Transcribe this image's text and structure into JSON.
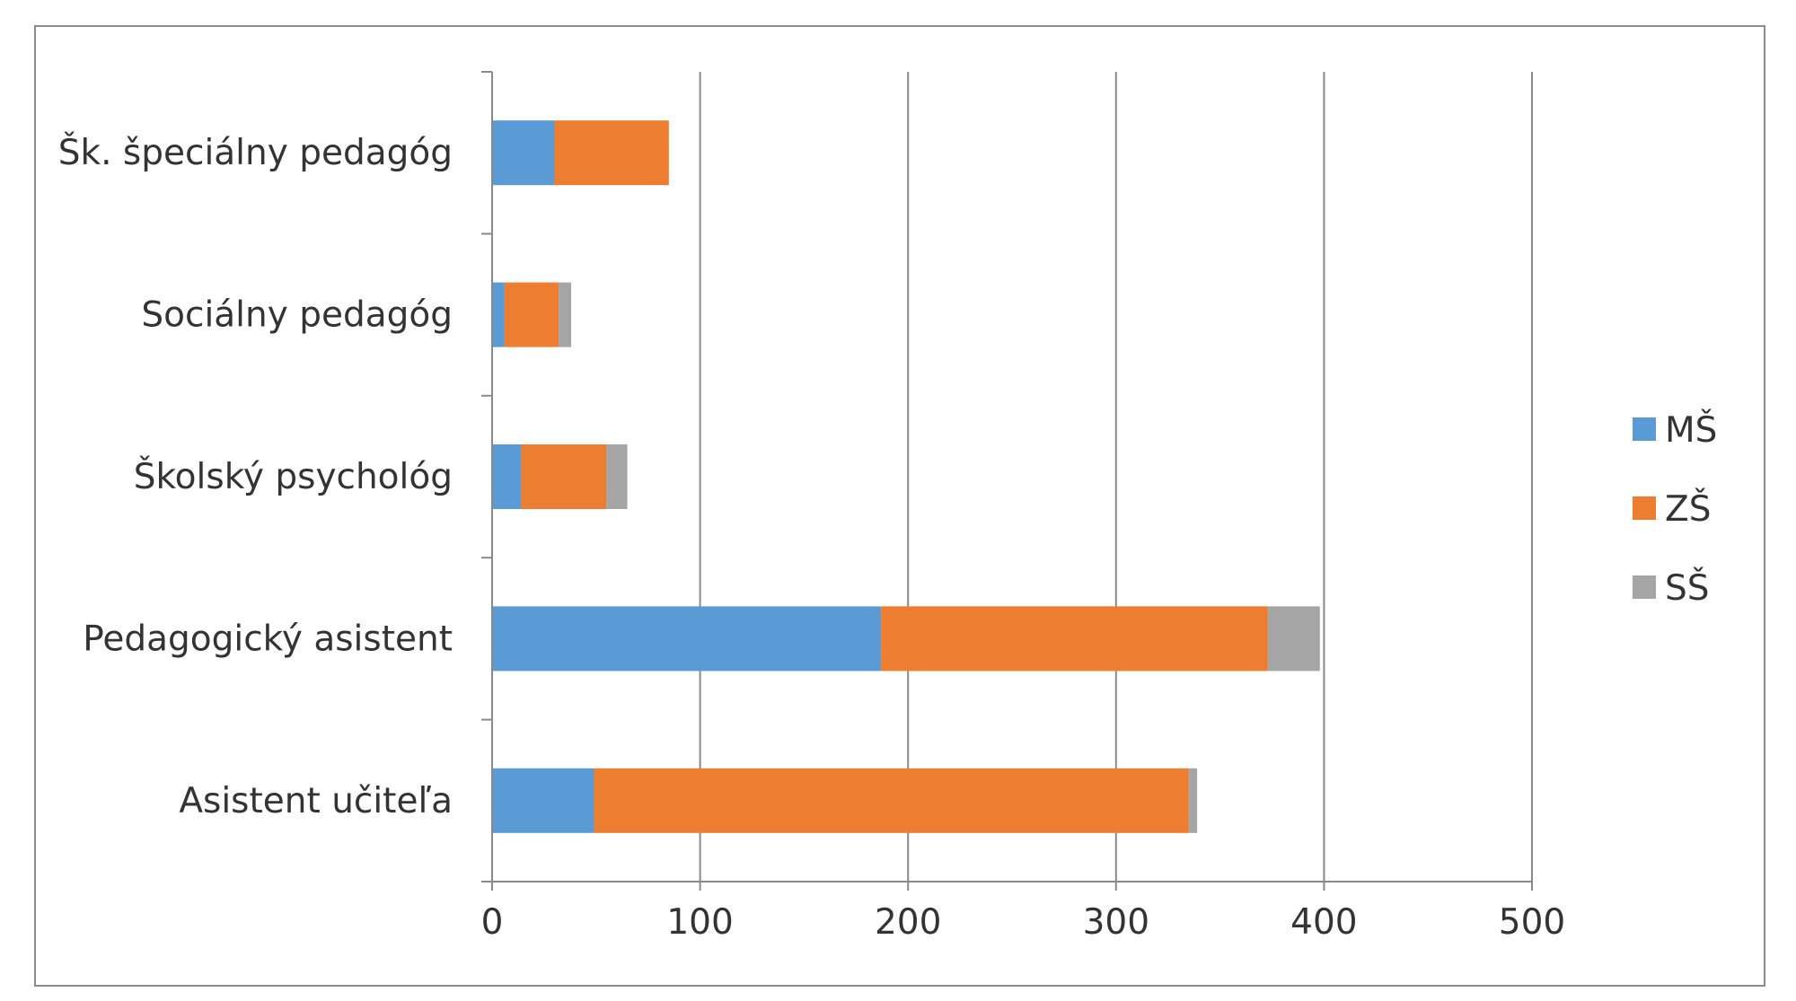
{
  "chart_data": {
    "type": "bar",
    "orientation": "horizontal",
    "stacked": true,
    "categories": [
      "Šk. špeciálny pedagóg",
      "Sociálny pedagóg",
      "Školský psychológ",
      "Pedagogický asistent",
      "Asistent učiteľa"
    ],
    "series": [
      {
        "name": "MŠ",
        "color": "#5b9bd5",
        "values": [
          30,
          6,
          14,
          187,
          49
        ]
      },
      {
        "name": "ZŠ",
        "color": "#ed7d31",
        "values": [
          55,
          26,
          41,
          186,
          286
        ]
      },
      {
        "name": "SŠ",
        "color": "#a5a5a5",
        "values": [
          0,
          6,
          10,
          25,
          4
        ]
      }
    ],
    "x_ticks": [
      "0",
      "100",
      "200",
      "300",
      "400",
      "500"
    ],
    "xlim": [
      0,
      500
    ],
    "grid": "vertical",
    "legend_position": "right"
  }
}
